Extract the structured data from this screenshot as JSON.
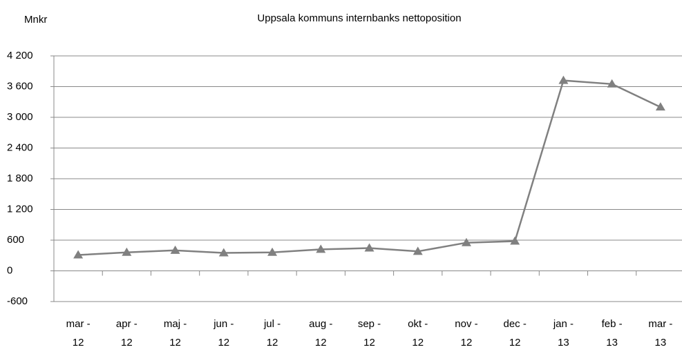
{
  "chart_data": {
    "type": "line",
    "title": "Uppsala kommuns internbanks nettoposition",
    "y_label": "Mnkr",
    "categories": [
      "mar -\n12",
      "apr -\n12",
      "maj -\n12",
      "jun -\n12",
      "jul -\n12",
      "aug -\n12",
      "sep -\n12",
      "okt -\n12",
      "nov -\n12",
      "dec -\n12",
      "jan -\n13",
      "feb -\n13",
      "mar -\n13"
    ],
    "series": [
      {
        "name": "Nettoposition",
        "color": "#808080",
        "values": [
          310,
          360,
          400,
          350,
          360,
          420,
          445,
          380,
          550,
          580,
          3720,
          3650,
          3200
        ]
      }
    ],
    "ylim": [
      -600,
      4200
    ],
    "yticks": [
      -600,
      0,
      600,
      {
        "value": 1200,
        "label": "1 200"
      },
      {
        "value": 1800,
        "label": "1 800"
      },
      {
        "value": 2400,
        "label": "2 400"
      },
      {
        "value": 3000,
        "label": "3 000"
      },
      {
        "value": 3600,
        "label": "3 600"
      },
      {
        "value": 4200,
        "label": "4 200"
      }
    ],
    "grid": true,
    "marker": "triangle"
  }
}
